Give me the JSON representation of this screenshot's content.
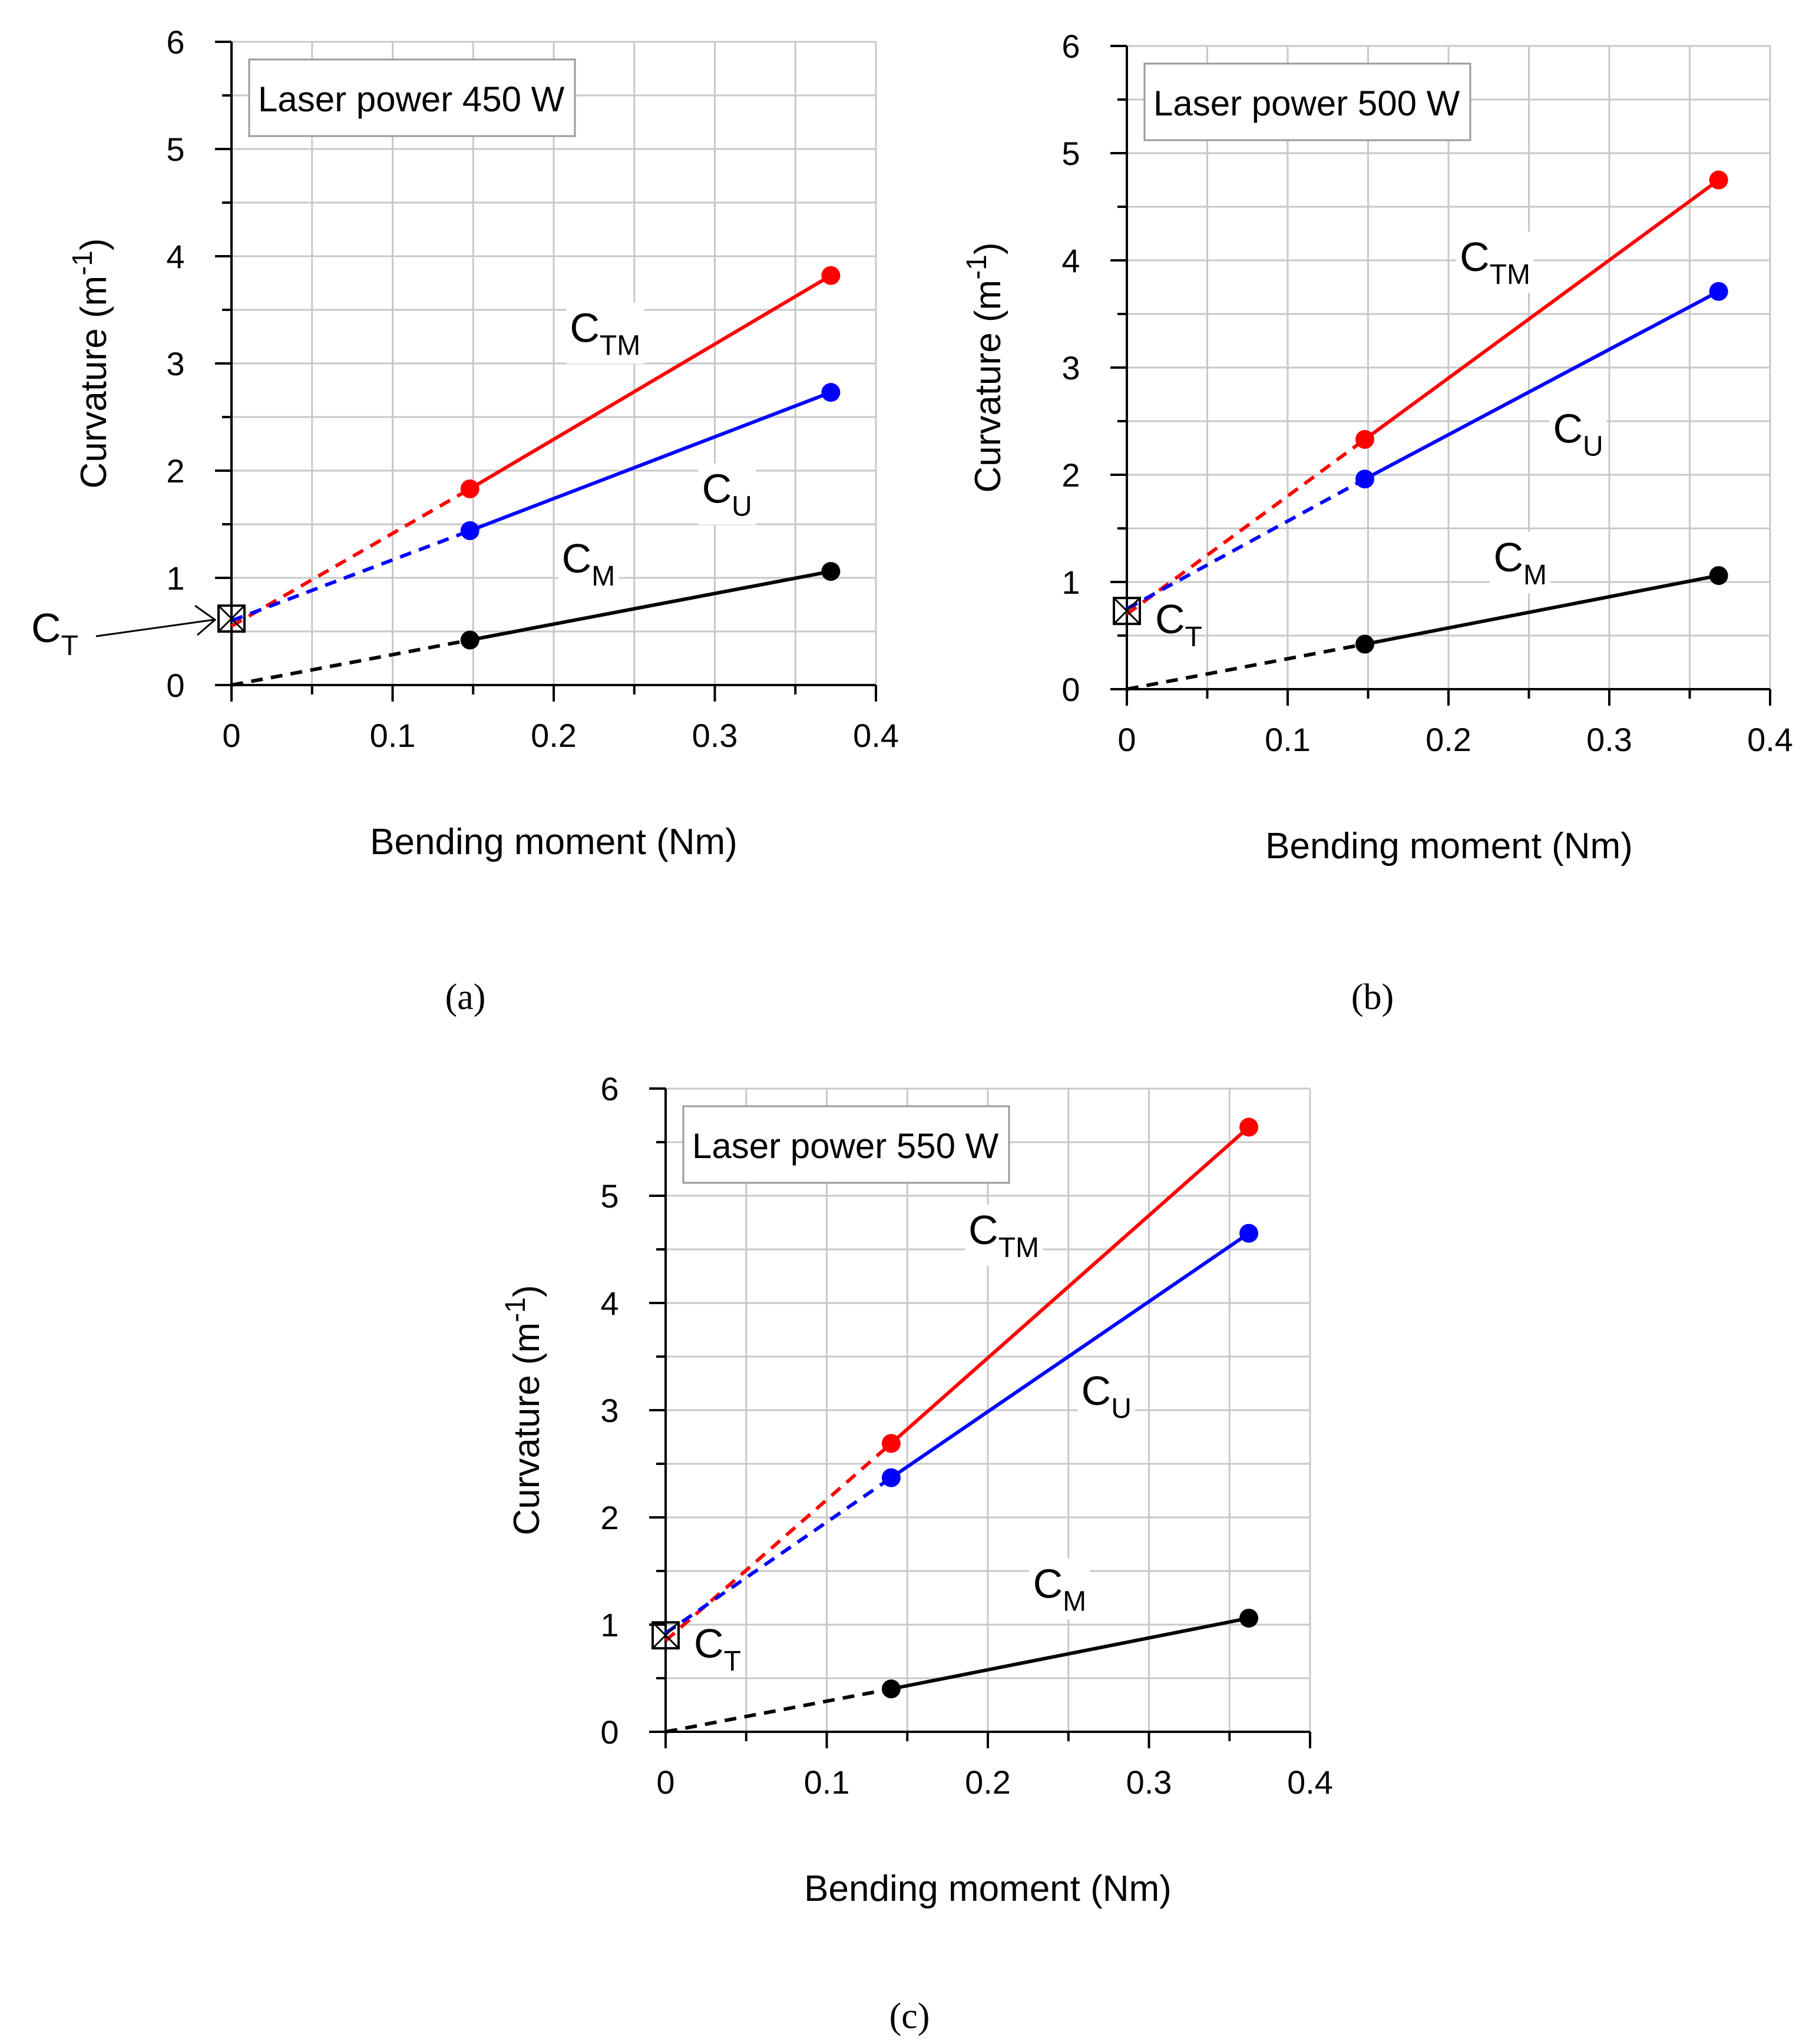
{
  "figure": {
    "panels": [
      "(a)",
      "(b)",
      "(c)"
    ]
  },
  "chart_data": [
    {
      "type": "line",
      "panel_label": "(a)",
      "title": "Laser power 450 W",
      "xlabel": "Bending moment (Nm)",
      "ylabel": "Curvature (m-1)",
      "ylabel_main": "Curvature (m",
      "ylabel_sup": "-1",
      "ylabel_end": ")",
      "xlim": [
        0,
        0.4
      ],
      "ylim": [
        0,
        6
      ],
      "xticks": [
        "0",
        "0.1",
        "0.2",
        "0.3",
        "0.4"
      ],
      "yticks": [
        "0",
        "1",
        "2",
        "3",
        "4",
        "5",
        "6"
      ],
      "grid": true,
      "ct_marker": {
        "x": 0,
        "y": 0.62,
        "arrow": true
      },
      "series": [
        {
          "name": "C_TM",
          "label_main": "C",
          "label_sub": "TM",
          "color": "#ff0000",
          "x": [
            0,
            0.148,
            0.372
          ],
          "y": [
            0.55,
            1.83,
            3.82
          ],
          "label_at": [
            0.21,
            3.2
          ]
        },
        {
          "name": "C_U",
          "label_main": "C",
          "label_sub": "U",
          "color": "#0000ff",
          "x": [
            0,
            0.148,
            0.372
          ],
          "y": [
            0.6,
            1.44,
            2.73
          ],
          "label_at": [
            0.292,
            1.7
          ]
        },
        {
          "name": "C_M",
          "label_main": "C",
          "label_sub": "M",
          "color": "#000000",
          "x": [
            0,
            0.148,
            0.372
          ],
          "y": [
            0,
            0.42,
            1.06
          ],
          "label_at": [
            0.205,
            1.05
          ]
        }
      ]
    },
    {
      "type": "line",
      "panel_label": "(b)",
      "title": "Laser power 500 W",
      "xlabel": "Bending moment (Nm)",
      "ylabel": "Curvature (m-1)",
      "ylabel_main": "Curvature (m",
      "ylabel_sup": "-1",
      "ylabel_end": ")",
      "xlim": [
        0,
        0.4
      ],
      "ylim": [
        0,
        6
      ],
      "xticks": [
        "0",
        "0.1",
        "0.2",
        "0.3",
        "0.4"
      ],
      "yticks": [
        "0",
        "1",
        "2",
        "3",
        "4",
        "5",
        "6"
      ],
      "grid": true,
      "ct_marker": {
        "x": 0,
        "y": 0.73,
        "arrow": false
      },
      "series": [
        {
          "name": "C_TM",
          "label_main": "C",
          "label_sub": "TM",
          "color": "#ff0000",
          "x": [
            0,
            0.148,
            0.368
          ],
          "y": [
            0.7,
            2.33,
            4.75
          ],
          "label_at": [
            0.207,
            3.9
          ]
        },
        {
          "name": "C_U",
          "label_main": "C",
          "label_sub": "U",
          "color": "#0000ff",
          "x": [
            0,
            0.148,
            0.368
          ],
          "y": [
            0.75,
            1.96,
            3.71
          ],
          "label_at": [
            0.265,
            2.3
          ]
        },
        {
          "name": "C_M",
          "label_main": "C",
          "label_sub": "M",
          "color": "#000000",
          "x": [
            0,
            0.148,
            0.368
          ],
          "y": [
            0,
            0.42,
            1.06
          ],
          "label_at": [
            0.228,
            1.1
          ]
        }
      ]
    },
    {
      "type": "line",
      "panel_label": "(c)",
      "title": "Laser power 550 W",
      "xlabel": "Bending moment (Nm)",
      "ylabel": "Curvature (m-1)",
      "ylabel_main": "Curvature (m",
      "ylabel_sup": "-1",
      "ylabel_end": ")",
      "xlim": [
        0,
        0.4
      ],
      "ylim": [
        0,
        6
      ],
      "xticks": [
        "0",
        "0.1",
        "0.2",
        "0.3",
        "0.4"
      ],
      "yticks": [
        "0",
        "1",
        "2",
        "3",
        "4",
        "5",
        "6"
      ],
      "grid": true,
      "ct_marker": {
        "x": 0,
        "y": 0.9,
        "arrow": false
      },
      "series": [
        {
          "name": "C_TM",
          "label_main": "C",
          "label_sub": "TM",
          "color": "#ff0000",
          "x": [
            0,
            0.14,
            0.362
          ],
          "y": [
            0.85,
            2.69,
            5.64
          ],
          "label_at": [
            0.188,
            4.55
          ]
        },
        {
          "name": "C_U",
          "label_main": "C",
          "label_sub": "U",
          "color": "#0000ff",
          "x": [
            0,
            0.14,
            0.362
          ],
          "y": [
            0.92,
            2.37,
            4.65
          ],
          "label_at": [
            0.258,
            3.05
          ]
        },
        {
          "name": "C_M",
          "label_main": "C",
          "label_sub": "M",
          "color": "#000000",
          "x": [
            0,
            0.14,
            0.362
          ],
          "y": [
            0,
            0.4,
            1.06
          ],
          "label_at": [
            0.228,
            1.25
          ]
        }
      ]
    }
  ],
  "ct_label": {
    "main": "C",
    "sub": "T"
  },
  "colors": {
    "grid": "#c8c8c8",
    "axis": "#000000"
  }
}
